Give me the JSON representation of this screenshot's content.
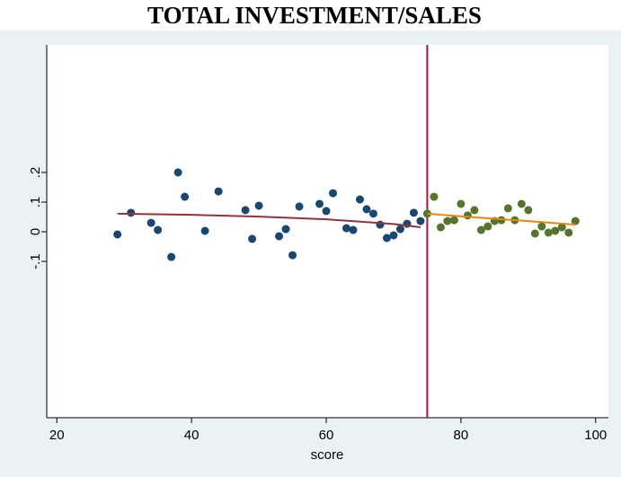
{
  "chart_data": {
    "type": "scatter",
    "title": "TOTAL INVESTMENT/SALES",
    "xlabel": "score",
    "xlim": [
      18.5,
      101.9
    ],
    "ylim": [
      -0.627,
      0.63
    ],
    "xticks": [
      20,
      40,
      60,
      80,
      100
    ],
    "yticks": [
      {
        "value": -0.1,
        "label": "-.1"
      },
      0,
      {
        "value": 0.1,
        "label": ".1"
      },
      {
        "value": 0.2,
        "label": ".2"
      }
    ],
    "cutoff": 75,
    "cutoff_color": "#a0183c",
    "series": [
      {
        "kind": "markers",
        "color": "#1a476f",
        "x": [
          29,
          31,
          34,
          35,
          37,
          38,
          39,
          42,
          44,
          48,
          49,
          50,
          53,
          54,
          55,
          56,
          59,
          60,
          61,
          63,
          64,
          65,
          66,
          67,
          68,
          69,
          70,
          71,
          72,
          73,
          74
        ],
        "values": [
          -0.009,
          0.064,
          0.03,
          0.006,
          -0.085,
          0.2,
          0.118,
          0.003,
          0.136,
          0.073,
          -0.024,
          0.088,
          -0.015,
          0.009,
          -0.079,
          0.085,
          0.094,
          0.07,
          0.13,
          0.012,
          0.006,
          0.109,
          0.076,
          0.061,
          0.024,
          -0.021,
          -0.012,
          0.009,
          0.027,
          0.064,
          0.036
        ]
      },
      {
        "kind": "markers",
        "color": "#55752f",
        "x": [
          75,
          76,
          77,
          78,
          79,
          80,
          81,
          82,
          83,
          84,
          85,
          86,
          87,
          88,
          89,
          90,
          91,
          92,
          93,
          94,
          95,
          96,
          97
        ],
        "values": [
          0.061,
          0.118,
          0.015,
          0.036,
          0.039,
          0.094,
          0.055,
          0.073,
          0.006,
          0.018,
          0.036,
          0.039,
          0.079,
          0.039,
          0.094,
          0.073,
          -0.006,
          0.018,
          -0.003,
          0.003,
          0.015,
          -0.003,
          0.036
        ]
      },
      {
        "kind": "line",
        "color": "#90353b",
        "x": [
          29,
          40,
          50,
          60,
          70,
          74
        ],
        "values": [
          0.061,
          0.057,
          0.051,
          0.042,
          0.026,
          0.015
        ]
      },
      {
        "kind": "line",
        "color": "#e8870e",
        "x": [
          75,
          80,
          85,
          90,
          97
        ],
        "values": [
          0.061,
          0.052,
          0.044,
          0.036,
          0.024
        ]
      }
    ]
  }
}
